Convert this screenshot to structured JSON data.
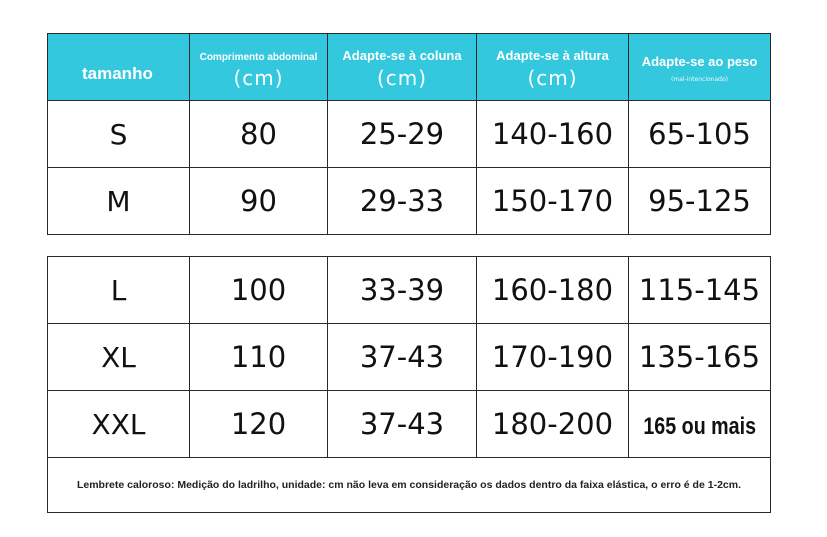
{
  "headers": {
    "size": "tamanho",
    "waist": "Comprimento abdominal",
    "waist_unit": "(cm)",
    "spine": "Adapte-se à coluna",
    "spine_unit": "(cm)",
    "height": "Adapte-se à altura",
    "height_unit": "(cm)",
    "weight": "Adapte-se ao peso",
    "weight_note": "(mal-intencionado)"
  },
  "rows": [
    {
      "size": "S",
      "waist": "80",
      "spine": "25-29",
      "height": "140-160",
      "weight": "65-105"
    },
    {
      "size": "M",
      "waist": "90",
      "spine": "29-33",
      "height": "150-170",
      "weight": "95-125"
    },
    {
      "size": "L",
      "waist": "100",
      "spine": "33-39",
      "height": "160-180",
      "weight": "115-145"
    },
    {
      "size": "XL",
      "waist": "110",
      "spine": "37-43",
      "height": "170-190",
      "weight": "135-165"
    },
    {
      "size": "XXL",
      "waist": "120",
      "spine": "37-43",
      "height": "180-200",
      "weight": "165 ou mais"
    }
  ],
  "note": "Lembrete caloroso: Medição do ladrilho, unidade: cm não leva em consideração os dados dentro da faixa elástica, o erro é de 1-2cm.",
  "colors": {
    "header_bg": "#33c8de",
    "header_text": "#ffffff",
    "border": "#2a2a2a"
  }
}
